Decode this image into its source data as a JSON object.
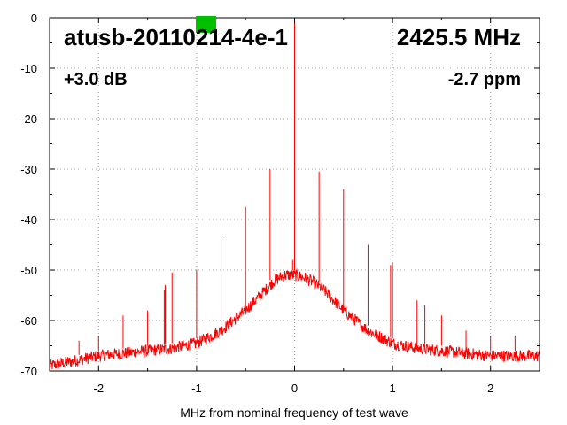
{
  "chart_data": {
    "type": "line",
    "title": "",
    "xlabel": "MHz from nominal frequency of test wave",
    "ylabel": "",
    "xlim": [
      -2.5,
      2.5
    ],
    "ylim": [
      -70,
      0
    ],
    "xticks": [
      -2,
      -1,
      0,
      1,
      2
    ],
    "xtick_labels": [
      "-2",
      "-1",
      "0",
      "1",
      "2"
    ],
    "yticks": [
      0,
      -10,
      -20,
      -30,
      -40,
      -50,
      -60,
      -70
    ],
    "ytick_labels": [
      "0",
      "-10",
      "-20",
      "-30",
      "-40",
      "-50",
      "-60",
      "-70"
    ],
    "grid": true,
    "series_color": "#ff0000",
    "marker_color": "#00c000",
    "annotations": {
      "device": "atusb-20110214-4e-1",
      "frequency": "2425.5 MHz",
      "gain": "+3.0 dB",
      "offset": "-2.7 ppm"
    },
    "noise_floor": {
      "x": [
        -2.5,
        -2.25,
        -2.0,
        -1.75,
        -1.5,
        -1.25,
        -1.0,
        -0.75,
        -0.5,
        -0.4,
        -0.3,
        -0.2,
        -0.1,
        0.0,
        0.1,
        0.2,
        0.3,
        0.4,
        0.5,
        0.75,
        1.0,
        1.25,
        1.5,
        1.75,
        2.0,
        2.25,
        2.5
      ],
      "y": [
        -69,
        -68,
        -67,
        -66.5,
        -66,
        -65.5,
        -64.5,
        -62,
        -58,
        -56,
        -54,
        -52,
        -51,
        -51,
        -51.5,
        -52.5,
        -54,
        -56,
        -58,
        -62,
        -64.5,
        -65.5,
        -66,
        -66.5,
        -67,
        -67,
        -67
      ]
    },
    "spurs": {
      "x": [
        -2.2,
        -2.0,
        -1.75,
        -1.5,
        -1.33,
        -1.32,
        -1.25,
        -1.0,
        -0.75,
        -0.5,
        -0.25,
        -0.02,
        0.0,
        0.25,
        0.5,
        0.75,
        0.98,
        1.0,
        1.25,
        1.33,
        1.5,
        1.75,
        2.0,
        2.25,
        2.5
      ],
      "y": [
        -64,
        -63,
        -59,
        -58,
        -54,
        -53,
        -50.5,
        -50,
        -43.5,
        -37.5,
        -30,
        -48,
        0,
        -30.5,
        -34,
        -45,
        -49,
        -48.5,
        -56,
        -57,
        -59,
        -62,
        -63,
        -63,
        -63
      ]
    }
  }
}
